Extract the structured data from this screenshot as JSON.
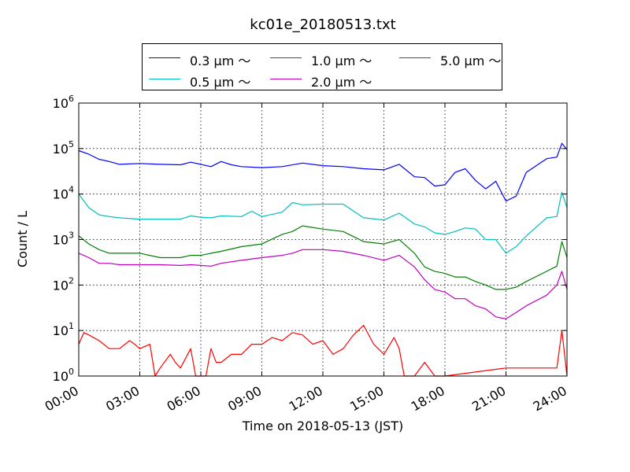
{
  "chart_data": {
    "type": "line",
    "title": "kc01e_20180513.txt",
    "xlabel": "Time on 2018-05-13 (JST)",
    "ylabel": "Count / L",
    "yscale": "log",
    "ylim": [
      1,
      1000000
    ],
    "xlim": [
      "00:00",
      "24:00"
    ],
    "x_ticks": [
      "00:00",
      "03:00",
      "06:00",
      "09:00",
      "12:00",
      "15:00",
      "18:00",
      "21:00",
      "24:00"
    ],
    "y_ticks": [
      {
        "value": 1,
        "base": "10",
        "exp": "0"
      },
      {
        "value": 10,
        "base": "10",
        "exp": "1"
      },
      {
        "value": 100,
        "base": "10",
        "exp": "2"
      },
      {
        "value": 1000,
        "base": "10",
        "exp": "3"
      },
      {
        "value": 10000,
        "base": "10",
        "exp": "4"
      },
      {
        "value": 100000,
        "base": "10",
        "exp": "5"
      },
      {
        "value": 1000000,
        "base": "10",
        "exp": "6"
      }
    ],
    "grid": true,
    "legend_position": "top-center, outside above plot",
    "series": [
      {
        "name": "0.3 μm ～",
        "color": "#0000ff",
        "points": [
          [
            "00:00",
            90000
          ],
          [
            "00:30",
            75000
          ],
          [
            "01:00",
            58000
          ],
          [
            "01:30",
            52000
          ],
          [
            "02:00",
            45000
          ],
          [
            "03:00",
            47000
          ],
          [
            "04:00",
            45000
          ],
          [
            "05:00",
            44000
          ],
          [
            "05:30",
            50000
          ],
          [
            "06:00",
            45000
          ],
          [
            "06:30",
            40000
          ],
          [
            "07:00",
            52000
          ],
          [
            "07:30",
            44000
          ],
          [
            "08:00",
            40000
          ],
          [
            "09:00",
            38000
          ],
          [
            "10:00",
            40000
          ],
          [
            "11:00",
            48000
          ],
          [
            "12:00",
            42000
          ],
          [
            "13:00",
            40000
          ],
          [
            "14:00",
            36000
          ],
          [
            "15:00",
            34000
          ],
          [
            "15:45",
            45000
          ],
          [
            "16:30",
            24000
          ],
          [
            "17:00",
            23000
          ],
          [
            "17:30",
            15000
          ],
          [
            "18:00",
            16000
          ],
          [
            "18:30",
            30000
          ],
          [
            "19:00",
            36000
          ],
          [
            "19:30",
            20000
          ],
          [
            "20:00",
            13000
          ],
          [
            "20:30",
            19000
          ],
          [
            "21:00",
            7000
          ],
          [
            "21:30",
            9000
          ],
          [
            "22:00",
            30000
          ],
          [
            "23:00",
            60000
          ],
          [
            "23:30",
            65000
          ],
          [
            "23:45",
            130000
          ],
          [
            "24:00",
            95000
          ]
        ]
      },
      {
        "name": "0.5 μm ～",
        "color": "#00bfbf",
        "points": [
          [
            "00:00",
            10000
          ],
          [
            "00:30",
            5000
          ],
          [
            "01:00",
            3500
          ],
          [
            "01:30",
            3200
          ],
          [
            "02:00",
            3000
          ],
          [
            "03:00",
            2800
          ],
          [
            "04:00",
            2800
          ],
          [
            "05:00",
            2800
          ],
          [
            "05:30",
            3300
          ],
          [
            "06:00",
            3100
          ],
          [
            "06:30",
            3000
          ],
          [
            "07:00",
            3300
          ],
          [
            "08:00",
            3200
          ],
          [
            "08:30",
            4200
          ],
          [
            "09:00",
            3200
          ],
          [
            "10:00",
            4000
          ],
          [
            "10:30",
            6500
          ],
          [
            "11:00",
            5800
          ],
          [
            "12:00",
            6000
          ],
          [
            "13:00",
            6000
          ],
          [
            "14:00",
            3000
          ],
          [
            "15:00",
            2700
          ],
          [
            "15:45",
            3800
          ],
          [
            "16:30",
            2200
          ],
          [
            "17:00",
            1900
          ],
          [
            "17:30",
            1400
          ],
          [
            "18:00",
            1300
          ],
          [
            "18:30",
            1500
          ],
          [
            "19:00",
            1800
          ],
          [
            "19:30",
            1700
          ],
          [
            "20:00",
            1000
          ],
          [
            "20:30",
            1000
          ],
          [
            "21:00",
            500
          ],
          [
            "21:30",
            700
          ],
          [
            "22:00",
            1200
          ],
          [
            "23:00",
            3000
          ],
          [
            "23:30",
            3200
          ],
          [
            "23:45",
            11000
          ],
          [
            "24:00",
            5000
          ]
        ]
      },
      {
        "name": "1.0 μm ～",
        "color": "#008000",
        "points": [
          [
            "00:00",
            1200
          ],
          [
            "00:30",
            800
          ],
          [
            "01:00",
            600
          ],
          [
            "01:30",
            500
          ],
          [
            "02:00",
            500
          ],
          [
            "03:00",
            500
          ],
          [
            "04:00",
            400
          ],
          [
            "05:00",
            400
          ],
          [
            "05:30",
            450
          ],
          [
            "06:00",
            450
          ],
          [
            "06:30",
            500
          ],
          [
            "07:00",
            550
          ],
          [
            "08:00",
            700
          ],
          [
            "09:00",
            800
          ],
          [
            "10:00",
            1300
          ],
          [
            "10:30",
            1500
          ],
          [
            "11:00",
            2000
          ],
          [
            "12:00",
            1700
          ],
          [
            "13:00",
            1500
          ],
          [
            "14:00",
            900
          ],
          [
            "15:00",
            800
          ],
          [
            "15:45",
            1000
          ],
          [
            "16:30",
            500
          ],
          [
            "17:00",
            250
          ],
          [
            "17:30",
            200
          ],
          [
            "18:00",
            180
          ],
          [
            "18:30",
            150
          ],
          [
            "19:00",
            150
          ],
          [
            "19:30",
            120
          ],
          [
            "20:00",
            100
          ],
          [
            "20:30",
            80
          ],
          [
            "21:00",
            80
          ],
          [
            "21:30",
            90
          ],
          [
            "22:00",
            120
          ],
          [
            "23:00",
            200
          ],
          [
            "23:30",
            260
          ],
          [
            "23:45",
            900
          ],
          [
            "24:00",
            400
          ]
        ]
      },
      {
        "name": "2.0 μm ～",
        "color": "#bf00bf",
        "points": [
          [
            "00:00",
            500
          ],
          [
            "00:30",
            400
          ],
          [
            "01:00",
            300
          ],
          [
            "01:30",
            300
          ],
          [
            "02:00",
            280
          ],
          [
            "03:00",
            280
          ],
          [
            "04:00",
            280
          ],
          [
            "05:00",
            270
          ],
          [
            "05:30",
            280
          ],
          [
            "06:00",
            270
          ],
          [
            "06:30",
            260
          ],
          [
            "07:00",
            300
          ],
          [
            "08:00",
            350
          ],
          [
            "09:00",
            400
          ],
          [
            "10:00",
            450
          ],
          [
            "10:30",
            500
          ],
          [
            "11:00",
            600
          ],
          [
            "12:00",
            600
          ],
          [
            "13:00",
            550
          ],
          [
            "14:00",
            450
          ],
          [
            "15:00",
            350
          ],
          [
            "15:45",
            450
          ],
          [
            "16:30",
            250
          ],
          [
            "17:00",
            130
          ],
          [
            "17:30",
            80
          ],
          [
            "18:00",
            70
          ],
          [
            "18:30",
            50
          ],
          [
            "19:00",
            50
          ],
          [
            "19:30",
            35
          ],
          [
            "20:00",
            30
          ],
          [
            "20:30",
            20
          ],
          [
            "21:00",
            18
          ],
          [
            "21:30",
            25
          ],
          [
            "22:00",
            35
          ],
          [
            "23:00",
            60
          ],
          [
            "23:30",
            100
          ],
          [
            "23:45",
            200
          ],
          [
            "24:00",
            80
          ]
        ]
      },
      {
        "name": "5.0 μm ～",
        "color": "#ff0000",
        "points": [
          [
            "00:00",
            5
          ],
          [
            "00:15",
            9
          ],
          [
            "00:30",
            8
          ],
          [
            "01:00",
            6
          ],
          [
            "01:30",
            4
          ],
          [
            "02:00",
            4
          ],
          [
            "02:30",
            6
          ],
          [
            "02:45",
            5
          ],
          [
            "03:00",
            4
          ],
          [
            "03:30",
            5
          ],
          [
            "03:45",
            1
          ],
          [
            "04:00",
            1.5
          ],
          [
            "04:30",
            3
          ],
          [
            "04:45",
            2
          ],
          [
            "05:00",
            1.5
          ],
          [
            "05:30",
            4
          ],
          [
            "05:45",
            1
          ],
          [
            "06:00",
            1
          ],
          [
            "06:15",
            1
          ],
          [
            "06:30",
            4
          ],
          [
            "06:45",
            2
          ],
          [
            "07:00",
            2
          ],
          [
            "07:30",
            3
          ],
          [
            "08:00",
            3
          ],
          [
            "08:30",
            5
          ],
          [
            "09:00",
            5
          ],
          [
            "09:30",
            7
          ],
          [
            "10:00",
            6
          ],
          [
            "10:30",
            9
          ],
          [
            "11:00",
            8
          ],
          [
            "11:30",
            5
          ],
          [
            "12:00",
            6
          ],
          [
            "12:30",
            3
          ],
          [
            "13:00",
            4
          ],
          [
            "13:30",
            8
          ],
          [
            "14:00",
            13
          ],
          [
            "14:30",
            5
          ],
          [
            "15:00",
            3
          ],
          [
            "15:30",
            7
          ],
          [
            "15:45",
            4
          ],
          [
            "16:00",
            1
          ],
          [
            "16:30",
            1
          ],
          [
            "17:00",
            2
          ],
          [
            "17:30",
            1
          ],
          [
            "18:00",
            1
          ],
          [
            "21:00",
            1.5
          ],
          [
            "23:30",
            1.5
          ],
          [
            "23:45",
            10
          ],
          [
            "24:00",
            1
          ]
        ]
      }
    ]
  }
}
